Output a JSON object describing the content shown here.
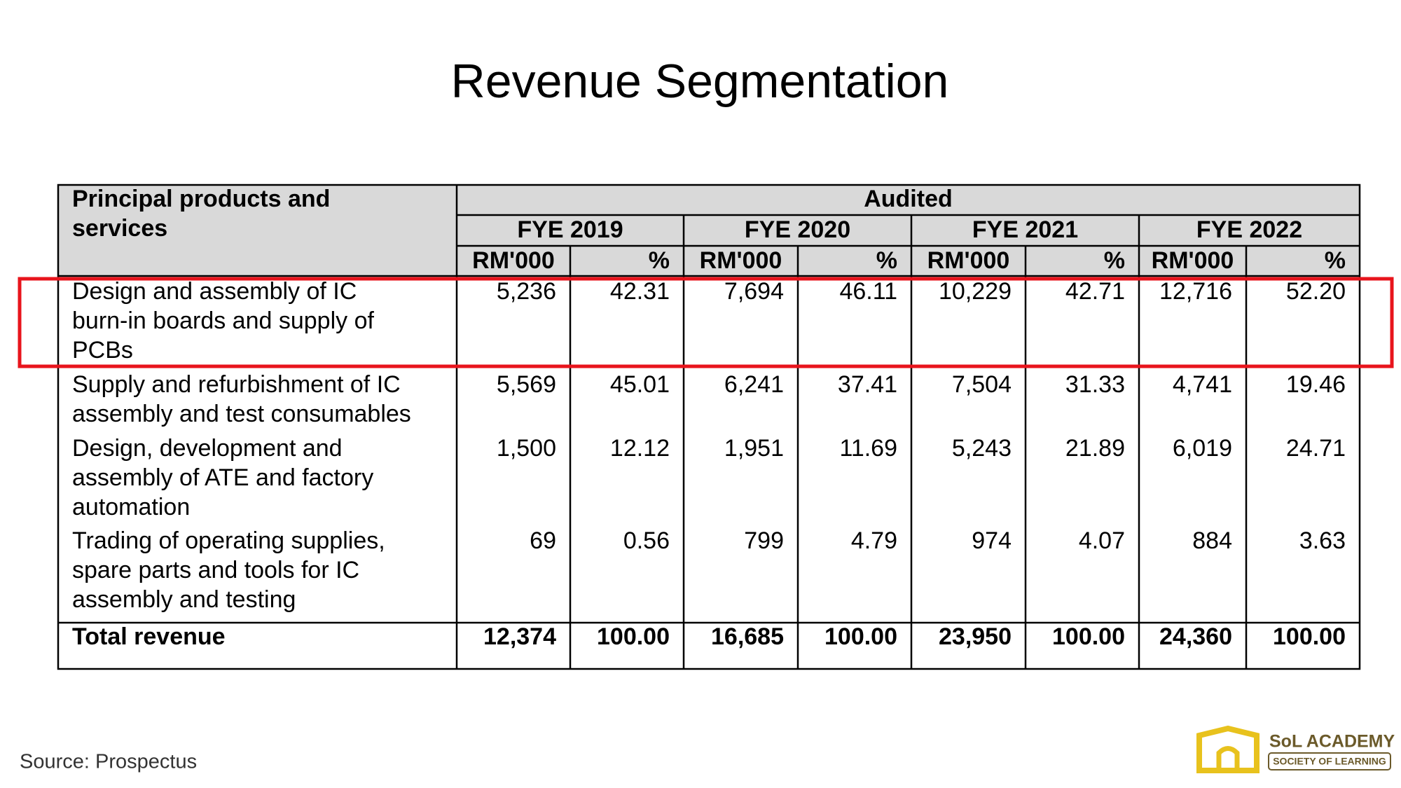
{
  "title": "Revenue Segmentation",
  "table": {
    "header": {
      "label": [
        "Principal products and",
        "services"
      ],
      "group": "Audited",
      "years": [
        {
          "label": "FYE 2019",
          "units": [
            "RM'000",
            "%"
          ]
        },
        {
          "label": "FYE 2020",
          "units": [
            "RM'000",
            "%"
          ]
        },
        {
          "label": "FYE 2021",
          "units": [
            "RM'000",
            "%"
          ]
        },
        {
          "label": "FYE 2022",
          "units": [
            "RM'000",
            "%"
          ]
        }
      ]
    },
    "rows": [
      {
        "label": [
          "Design and assembly of IC",
          "burn-in boards and supply of",
          "PCBs"
        ],
        "cells": [
          "5,236",
          "42.31",
          "7,694",
          "46.11",
          "10,229",
          "42.71",
          "12,716",
          "52.20"
        ]
      },
      {
        "label": [
          "Supply and refurbishment of IC",
          "assembly and test consumables"
        ],
        "cells": [
          "5,569",
          "45.01",
          "6,241",
          "37.41",
          "7,504",
          "31.33",
          "4,741",
          "19.46"
        ]
      },
      {
        "label": [
          "Design, development and",
          "assembly of ATE and factory",
          "automation"
        ],
        "cells": [
          "1,500",
          "12.12",
          "1,951",
          "11.69",
          "5,243",
          "21.89",
          "6,019",
          "24.71"
        ]
      },
      {
        "label": [
          "Trading of operating supplies,",
          "spare parts and tools for IC",
          "assembly and testing"
        ],
        "cells": [
          "69",
          "0.56",
          "799",
          "4.79",
          "974",
          "4.07",
          "884",
          "3.63"
        ]
      }
    ],
    "total": {
      "label": "Total revenue",
      "cells": [
        "12,374",
        "100.00",
        "16,685",
        "100.00",
        "23,950",
        "100.00",
        "24,360",
        "100.00"
      ]
    }
  },
  "source": "Source: Prospectus",
  "logo": {
    "name": "SoL ACADEMY",
    "tagline": "SOCIETY OF LEARNING"
  }
}
